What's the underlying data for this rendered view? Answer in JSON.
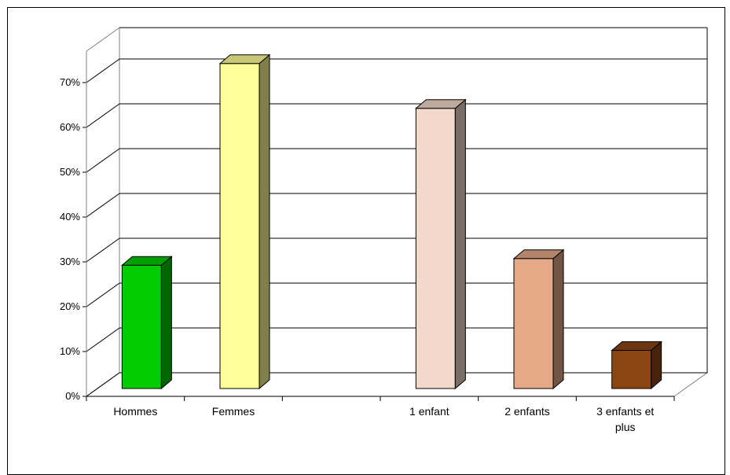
{
  "chart_data": {
    "type": "bar",
    "categories": [
      "Hommes",
      "Femmes",
      "",
      "1 enfant",
      "2 enfants",
      "3 enfants et plus"
    ],
    "values": [
      27.5,
      72.5,
      null,
      62.5,
      29,
      8.5
    ],
    "colors": [
      "#00cc00",
      "#ffff99",
      null,
      "#f2d9c9",
      "#e6a987",
      "#8b4513"
    ],
    "ylim": [
      0,
      70
    ],
    "yticks": [
      "0%",
      "10%",
      "20%",
      "30%",
      "40%",
      "50%",
      "60%",
      "70%"
    ],
    "ytick_values": [
      0,
      10,
      20,
      30,
      40,
      50,
      60,
      70
    ],
    "grid": true,
    "three_d": true
  }
}
